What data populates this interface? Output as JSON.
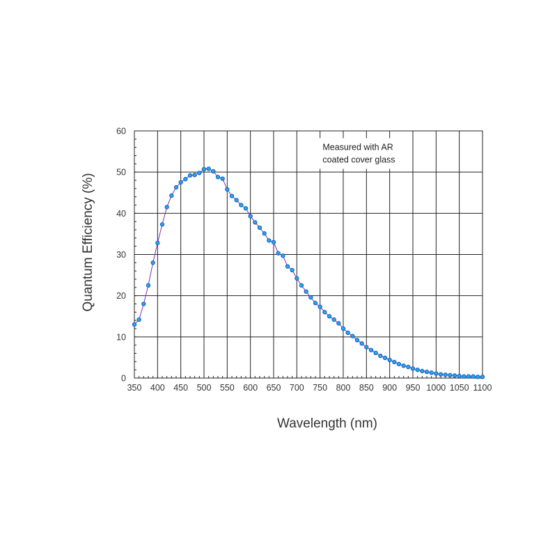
{
  "chart_data": {
    "type": "line",
    "title": "",
    "xlabel": "Wavelength (nm)",
    "ylabel": "Quantum Efficiency (%)",
    "xlim": [
      350,
      1100
    ],
    "ylim": [
      0,
      60
    ],
    "x_ticks": [
      350,
      400,
      450,
      500,
      550,
      600,
      650,
      700,
      750,
      800,
      850,
      900,
      950,
      1000,
      1050,
      1100
    ],
    "y_ticks": [
      0,
      10,
      20,
      30,
      40,
      50,
      60
    ],
    "grid": true,
    "legend": "none",
    "line_color": "#7a2fb0",
    "marker_color": "#1fa8f0",
    "marker_edge_color": "#1a4fb5",
    "annotations": [
      {
        "lines": [
          "Measured with AR",
          "coated cover glass"
        ],
        "x": 835,
        "y": 54
      }
    ],
    "series": [
      {
        "name": "",
        "x": [
          350,
          360,
          370,
          380,
          390,
          400,
          410,
          420,
          430,
          440,
          450,
          460,
          470,
          480,
          490,
          500,
          510,
          520,
          530,
          540,
          550,
          560,
          570,
          580,
          590,
          600,
          610,
          620,
          630,
          640,
          650,
          660,
          670,
          680,
          690,
          700,
          710,
          720,
          730,
          740,
          750,
          760,
          770,
          780,
          790,
          800,
          810,
          820,
          830,
          840,
          850,
          860,
          870,
          880,
          890,
          900,
          910,
          920,
          930,
          940,
          950,
          960,
          970,
          980,
          990,
          1000,
          1010,
          1020,
          1030,
          1040,
          1050,
          1060,
          1070,
          1080,
          1090,
          1100
        ],
        "y": [
          13.0,
          14.2,
          18.0,
          22.5,
          28.0,
          32.8,
          37.3,
          41.5,
          44.3,
          46.3,
          47.5,
          48.3,
          49.2,
          49.3,
          49.8,
          50.7,
          50.8,
          50.2,
          48.8,
          48.4,
          45.8,
          44.2,
          43.2,
          42.0,
          41.2,
          39.3,
          37.8,
          36.5,
          35.1,
          33.4,
          33.0,
          30.3,
          29.7,
          27.1,
          26.2,
          24.2,
          22.5,
          21.0,
          19.6,
          18.2,
          17.3,
          16.0,
          15.0,
          14.2,
          13.3,
          12.0,
          11.0,
          10.2,
          9.2,
          8.4,
          7.5,
          6.8,
          6.1,
          5.4,
          4.9,
          4.4,
          3.9,
          3.4,
          3.0,
          2.7,
          2.3,
          2.0,
          1.7,
          1.5,
          1.3,
          1.1,
          0.9,
          0.8,
          0.7,
          0.6,
          0.5,
          0.4,
          0.4,
          0.4,
          0.3,
          0.3
        ]
      }
    ]
  }
}
